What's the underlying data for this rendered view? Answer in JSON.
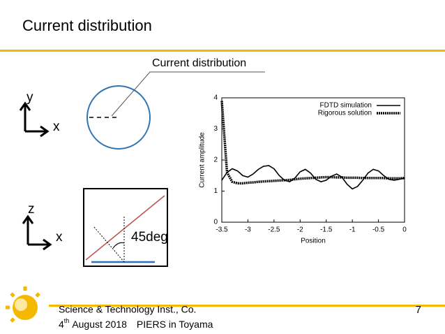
{
  "slide": {
    "title": "Current distribution",
    "annotation": "Current distribution",
    "axes_top": {
      "y": "y",
      "x": "x"
    },
    "axes_bottom": {
      "z": "z",
      "x": "x"
    },
    "angle_label": "45deg",
    "footer": {
      "org": "Science & Technology Inst., Co.",
      "date_day": "4",
      "date_suffix": "th",
      "date_rest": "August 2018　PIERS in Toyama",
      "page": "7"
    }
  },
  "chart_data": {
    "type": "line",
    "x_label": "Position",
    "y_label": "Current amplitude",
    "x": [
      -3.5,
      -3.4,
      -3.3,
      -3.2,
      -3.1,
      -3.0,
      -2.9,
      -2.8,
      -2.7,
      -2.6,
      -2.5,
      -2.4,
      -2.3,
      -2.2,
      -2.1,
      -2.0,
      -1.9,
      -1.8,
      -1.7,
      -1.6,
      -1.5,
      -1.4,
      -1.3,
      -1.2,
      -1.1,
      -1.0,
      -0.9,
      -0.8,
      -0.7,
      -0.6,
      -0.5,
      -0.4,
      -0.3,
      -0.2,
      -0.1,
      0
    ],
    "series": [
      {
        "name": "FDTD simulation",
        "color": "#000000",
        "line_style": "solid",
        "values": [
          1.35,
          1.6,
          1.72,
          1.65,
          1.5,
          1.45,
          1.55,
          1.7,
          1.8,
          1.82,
          1.72,
          1.5,
          1.35,
          1.3,
          1.42,
          1.62,
          1.7,
          1.58,
          1.38,
          1.3,
          1.35,
          1.48,
          1.55,
          1.45,
          1.22,
          1.07,
          1.15,
          1.35,
          1.58,
          1.7,
          1.65,
          1.5,
          1.38,
          1.35,
          1.38,
          1.42
        ]
      },
      {
        "name": "Rigorous solution",
        "color": "#000000",
        "line_style": "dotted",
        "values": [
          3.9,
          1.6,
          1.3,
          1.25,
          1.25,
          1.27,
          1.28,
          1.3,
          1.31,
          1.32,
          1.33,
          1.34,
          1.35,
          1.36,
          1.38,
          1.4,
          1.41,
          1.42,
          1.43,
          1.44,
          1.45,
          1.45,
          1.44,
          1.44,
          1.43,
          1.43,
          1.43,
          1.42,
          1.42,
          1.42,
          1.42,
          1.42,
          1.41,
          1.41,
          1.41,
          1.42
        ]
      }
    ],
    "xlim": [
      -3.5,
      0
    ],
    "xticks": [
      -3.5,
      -3,
      -2.5,
      -2,
      -1.5,
      -1,
      -0.5,
      0
    ],
    "ylim": [
      0,
      4
    ],
    "yticks": [
      0,
      1,
      2,
      3,
      4
    ],
    "legend": "upper right"
  }
}
